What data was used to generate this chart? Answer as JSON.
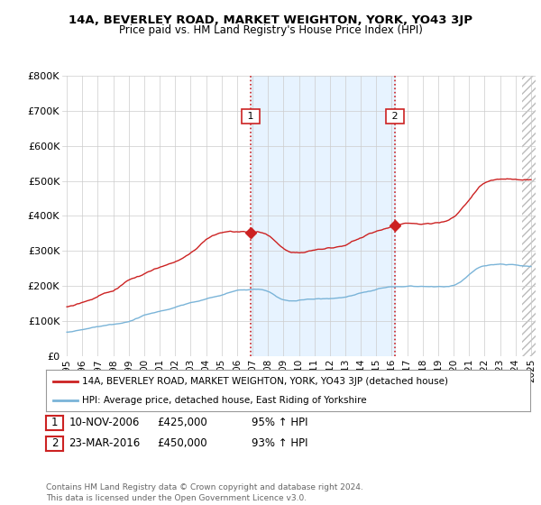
{
  "title": "14A, BEVERLEY ROAD, MARKET WEIGHTON, YORK, YO43 3JP",
  "subtitle": "Price paid vs. HM Land Registry's House Price Index (HPI)",
  "ylabel_ticks": [
    "£0",
    "£100K",
    "£200K",
    "£300K",
    "£400K",
    "£500K",
    "£600K",
    "£700K",
    "£800K"
  ],
  "ytick_values": [
    0,
    100000,
    200000,
    300000,
    400000,
    500000,
    600000,
    700000,
    800000
  ],
  "ylim": [
    0,
    800000
  ],
  "xlim_start": 1994.7,
  "xlim_end": 2025.3,
  "xtick_years": [
    1995,
    1996,
    1997,
    1998,
    1999,
    2000,
    2001,
    2002,
    2003,
    2004,
    2005,
    2006,
    2007,
    2008,
    2009,
    2010,
    2011,
    2012,
    2013,
    2014,
    2015,
    2016,
    2017,
    2018,
    2019,
    2020,
    2021,
    2022,
    2023,
    2024,
    2025
  ],
  "hpi_color": "#7ab4d8",
  "price_color": "#cc2222",
  "vline_color": "#cc2222",
  "background_color": "#ffffff",
  "grid_color": "#cccccc",
  "purchase1_x": 2006.87,
  "purchase2_x": 2016.22,
  "purchase1_label": "1",
  "purchase2_label": "2",
  "purchase1_date": "10-NOV-2006",
  "purchase1_price": "£425,000",
  "purchase1_hpi": "95% ↑ HPI",
  "purchase2_date": "23-MAR-2016",
  "purchase2_price": "£450,000",
  "purchase2_hpi": "93% ↑ HPI",
  "legend_line1": "14A, BEVERLEY ROAD, MARKET WEIGHTON, YORK, YO43 3JP (detached house)",
  "legend_line2": "HPI: Average price, detached house, East Riding of Yorkshire",
  "footer": "Contains HM Land Registry data © Crown copyright and database right 2024.\nThis data is licensed under the Open Government Licence v3.0.",
  "shade_between_x1": 2006.87,
  "shade_between_x2": 2016.22,
  "hatch_start": 2024.42,
  "title_fontsize": 9.5,
  "subtitle_fontsize": 8.5
}
